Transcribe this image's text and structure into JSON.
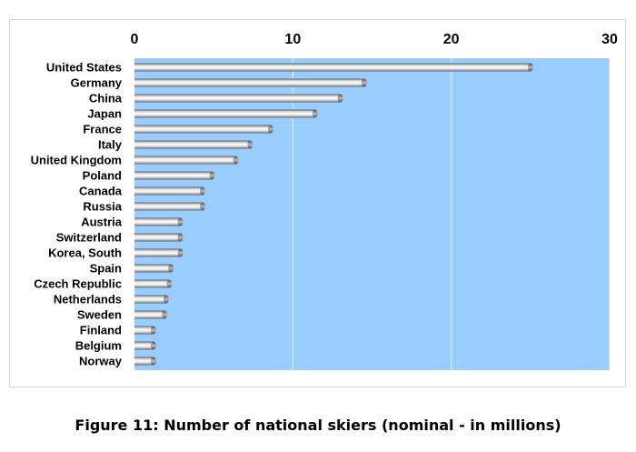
{
  "caption": "Figure 11: Number of national skiers (nominal - in millions)",
  "chart_data": {
    "type": "bar",
    "orientation": "horizontal",
    "title": "",
    "xlabel": "",
    "ylabel": "",
    "xlim": [
      0,
      30
    ],
    "ticks": [
      0,
      10,
      20,
      30
    ],
    "tick_position": "top",
    "grid": true,
    "legend": "none",
    "colors": {
      "plot_background": "#99ccff",
      "gridline": "#e8f2fc",
      "bar_light": "#ffffff",
      "bar_dark": "#6e6e6e"
    },
    "categories": [
      "United States",
      "Germany",
      "China",
      "Japan",
      "France",
      "Italy",
      "United Kingdom",
      "Poland",
      "Canada",
      "Russia",
      "Austria",
      "Switzerland",
      "Korea, South",
      "Spain",
      "Czech Republic",
      "Netherlands",
      "Sweden",
      "Finland",
      "Belgium",
      "Norway"
    ],
    "values": [
      25,
      14.5,
      13,
      11.4,
      8.6,
      7.3,
      6.4,
      4.9,
      4.3,
      4.3,
      2.9,
      2.9,
      2.9,
      2.3,
      2.2,
      2.0,
      1.9,
      1.2,
      1.2,
      1.2
    ]
  }
}
